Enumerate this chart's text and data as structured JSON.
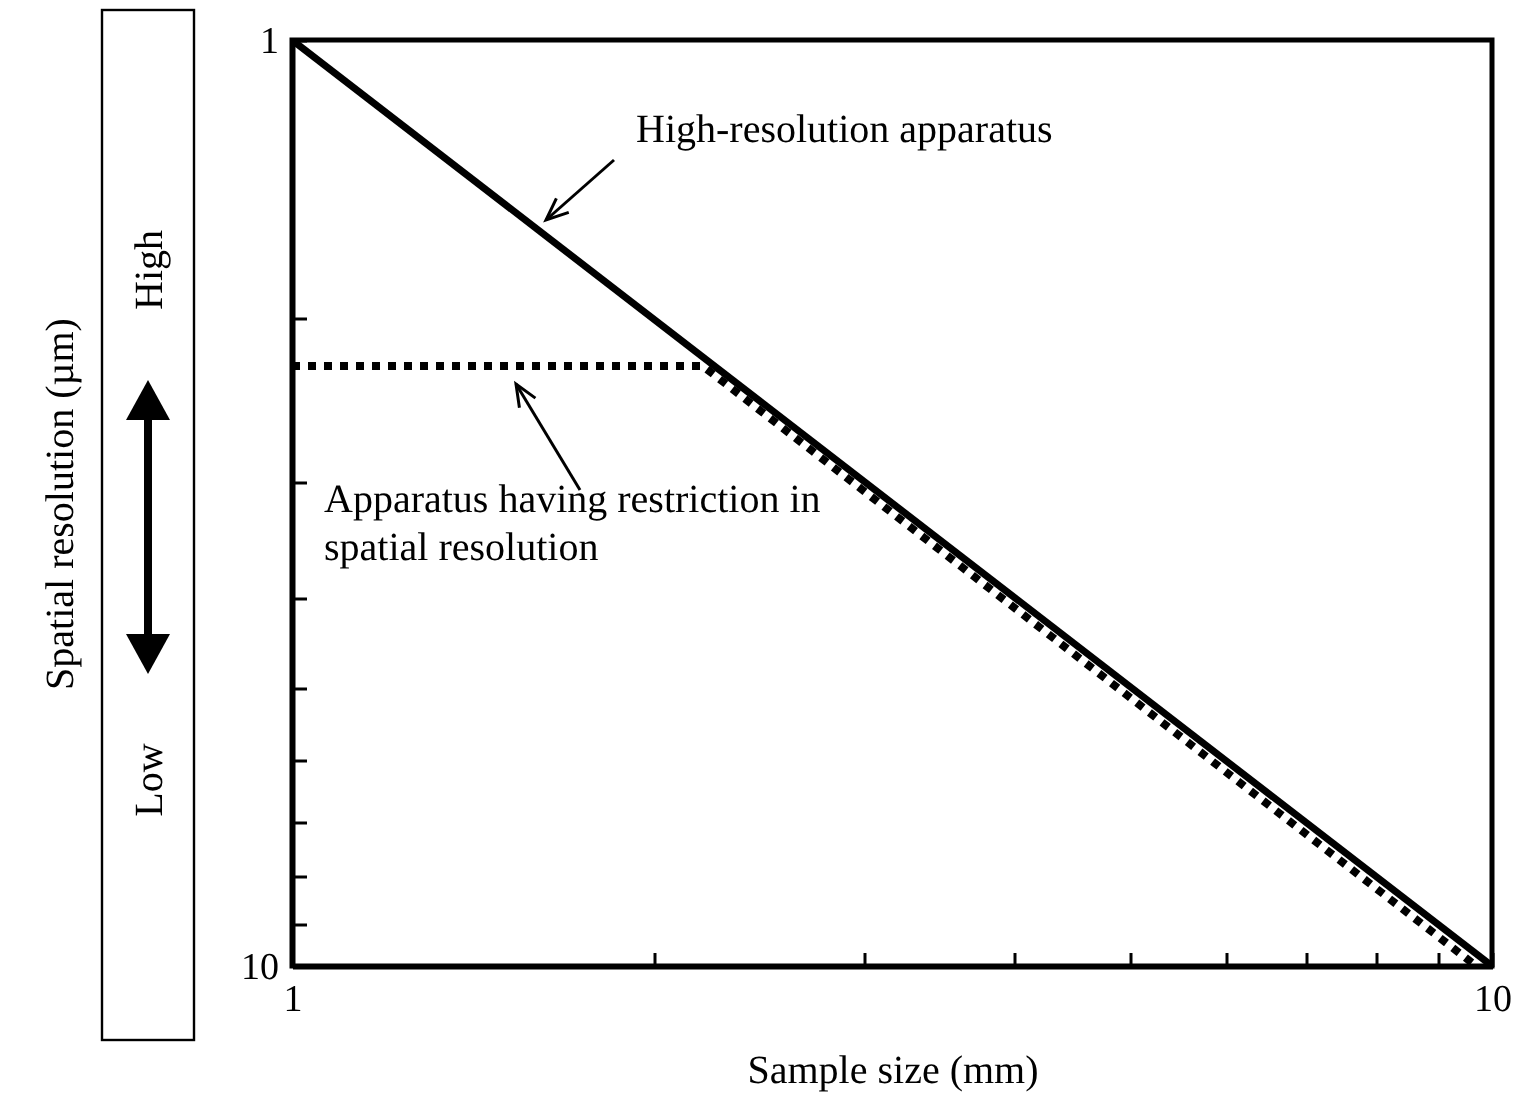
{
  "chart_data": {
    "type": "line",
    "xlabel": "Sample size (mm)",
    "ylabel": "Spatial resolution (µm)",
    "log": "xy",
    "grid": false,
    "xlim": [
      1,
      10
    ],
    "ylim": [
      10,
      1
    ],
    "xticks": [
      1,
      {
        "value": 2,
        "label": null
      },
      {
        "value": 3,
        "label": null
      },
      {
        "value": 4,
        "label": null
      },
      {
        "value": 5,
        "label": null
      },
      {
        "value": 6,
        "label": null
      },
      {
        "value": 7,
        "label": null
      },
      {
        "value": 8,
        "label": null
      },
      {
        "value": 9,
        "label": null
      },
      10
    ],
    "yticks": [
      1,
      {
        "value": 2,
        "label": null
      },
      {
        "value": 3,
        "label": null
      },
      {
        "value": 4,
        "label": null
      },
      {
        "value": 5,
        "label": null
      },
      {
        "value": 6,
        "label": null
      },
      {
        "value": 7,
        "label": null
      },
      {
        "value": 8,
        "label": null
      },
      {
        "value": 9,
        "label": null
      },
      10
    ],
    "series": [
      {
        "color": "#000000",
        "line_style": "solid",
        "x": [
          1,
          10
        ],
        "values": [
          1,
          10
        ]
      },
      {
        "color": "#000000",
        "line_style": "dotted",
        "x": [
          1,
          2.2,
          9.7
        ],
        "values": [
          2.25,
          2.25,
          10
        ]
      }
    ],
    "annotations": [
      "High-resolution apparatus",
      "Apparatus having restriction in spatial resolution",
      "High",
      "Low"
    ]
  }
}
